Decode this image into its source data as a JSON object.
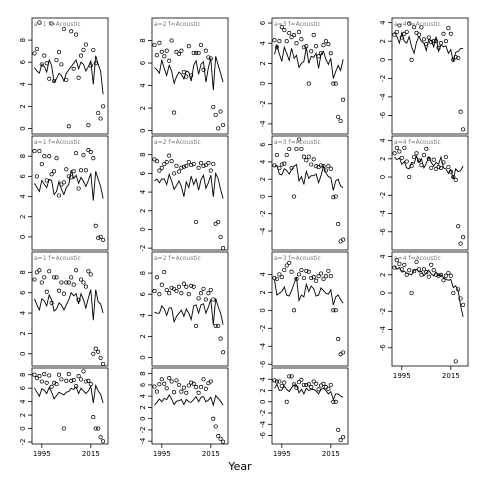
{
  "chart_data": {
    "type": "line",
    "xlabel": "Year",
    "ylabel": "",
    "xlim": [
      1991,
      2022
    ],
    "x_ticks": [
      1995,
      2015
    ],
    "x_tick_labels": [
      "1995",
      "2015"
    ],
    "grid": false,
    "legend": "none",
    "x": [
      1992,
      1993,
      1994,
      1995,
      1996,
      1997,
      1998,
      1999,
      2000,
      2001,
      2002,
      2003,
      2004,
      2005,
      2006,
      2007,
      2008,
      2009,
      2010,
      2011,
      2012,
      2013,
      2014,
      2015,
      2016,
      2017,
      2018,
      2019,
      2020
    ],
    "panels": [
      {
        "col": 0,
        "row": 0,
        "label": "a=1 f=Acoustic",
        "ylim": [
          -0.5,
          10
        ],
        "yticks": [
          0,
          2,
          4,
          6,
          8
        ],
        "line": [
          5.5,
          5.2,
          5.0,
          5.8,
          5.6,
          5.1,
          6.2,
          5.7,
          4.2,
          4.5,
          5.0,
          4.8,
          4.3,
          5.0,
          5.3,
          5.6,
          5.9,
          6.2,
          5.4,
          6.0,
          5.8,
          5.2,
          5.6,
          6.1,
          4.0,
          6.6,
          5.8,
          5.2,
          3.1
        ],
        "points": [
          6.8,
          7.2,
          9.6,
          5.8,
          6.6,
          5.9,
          4.5,
          9.5,
          4.3,
          6.2,
          6.9,
          5.8,
          9.0,
          4.4,
          0.2,
          8.8,
          5.4,
          8.5,
          4.6,
          6.6,
          7.1,
          7.6,
          0.3,
          5.7,
          7.1,
          5.9,
          1.4,
          0.9,
          2.0
        ]
      },
      {
        "col": 1,
        "row": 0,
        "label": "a=2 f=Acoustic",
        "ylim": [
          -0.3,
          10
        ],
        "yticks": [
          0,
          2,
          4,
          6,
          8
        ],
        "line": [
          5.6,
          5.4,
          5.1,
          6.3,
          5.5,
          4.9,
          5.8,
          5.3,
          4.2,
          4.8,
          5.2,
          5.0,
          4.6,
          5.3,
          5.2,
          4.4,
          5.8,
          6.2,
          5.0,
          5.9,
          6.1,
          4.3,
          5.6,
          6.4,
          3.6,
          6.6,
          5.8,
          5.1,
          4.3
        ],
        "points": [
          7.6,
          6.7,
          7.8,
          7.0,
          6.6,
          7.1,
          6.2,
          8.0,
          1.6,
          7.0,
          6.8,
          7.1,
          5.2,
          4.8,
          7.5,
          4.9,
          6.9,
          6.9,
          6.9,
          7.6,
          5.4,
          7.1,
          6.5,
          6.4,
          2.1,
          1.4,
          0.2,
          1.7,
          0.5
        ]
      },
      {
        "col": 2,
        "row": 0,
        "label": "a=3 f=Acoustic",
        "ylim": [
          -5,
          6.5
        ],
        "yticks": [
          -4,
          -2,
          0,
          2,
          4,
          6
        ],
        "line": [
          2.9,
          3.8,
          2.9,
          2.2,
          3.6,
          3.0,
          2.3,
          3.5,
          2.5,
          2.8,
          1.6,
          2.0,
          2.2,
          3.6,
          2.0,
          2.7,
          2.6,
          3.0,
          1.5,
          2.9,
          3.2,
          2.4,
          1.9,
          2.5,
          0.5,
          1.2,
          1.8,
          1.3,
          2.4
        ],
        "points": [
          4.3,
          3.6,
          4.2,
          5.6,
          5.3,
          4.2,
          5.0,
          4.6,
          4.8,
          4.0,
          5.1,
          4.4,
          3.6,
          3.7,
          0.0,
          3.2,
          4.8,
          3.7,
          2.7,
          3.0,
          3.8,
          4.2,
          3.9,
          3.0,
          0.0,
          0.0,
          -3.3,
          -3.7,
          -1.6
        ]
      },
      {
        "col": 3,
        "row": 0,
        "label": "a=4 f=Acoustic",
        "ylim": [
          -8,
          4.5
        ],
        "yticks": [
          -6,
          -4,
          -2,
          0,
          2,
          4
        ],
        "line": [
          3.0,
          2.5,
          1.8,
          2.9,
          2.0,
          1.8,
          2.5,
          1.4,
          0.7,
          1.9,
          2.5,
          2.0,
          1.8,
          1.0,
          2.2,
          2.1,
          1.4,
          2.5,
          0.9,
          1.6,
          1.4,
          1.5,
          0.7,
          1.1,
          -0.2,
          0.8,
          0.9,
          1.2,
          1.2
        ],
        "points": [
          2.7,
          3.0,
          3.7,
          2.4,
          2.8,
          3.0,
          3.9,
          0.0,
          3.5,
          2.9,
          2.7,
          3.5,
          2.2,
          1.7,
          2.4,
          1.9,
          2.0,
          2.0,
          1.3,
          1.8,
          2.8,
          2.0,
          3.4,
          2.8,
          0.0,
          0.3,
          0.2,
          -5.6,
          -7.5
        ]
      },
      {
        "col": 0,
        "row": 1,
        "label": "a=1 f=Acoustic",
        "ylim": [
          -1.3,
          10
        ],
        "yticks": [
          0,
          2,
          4,
          6,
          8
        ],
        "line": [
          5.3,
          4.9,
          4.5,
          5.6,
          5.2,
          4.9,
          5.7,
          5.6,
          4.2,
          4.5,
          5.5,
          4.7,
          4.2,
          4.9,
          5.2,
          6.6,
          5.8,
          6.1,
          5.3,
          5.9,
          5.5,
          5.0,
          5.6,
          6.3,
          3.6,
          6.5,
          5.7,
          5.0,
          3.8
        ],
        "points": [
          8.5,
          6.0,
          8.5,
          7.2,
          8.0,
          5.6,
          8.0,
          6.2,
          6.5,
          7.8,
          4.1,
          5.2,
          5.4,
          6.7,
          6.0,
          5.9,
          6.5,
          8.3,
          4.8,
          6.6,
          8.1,
          6.6,
          8.6,
          8.4,
          7.8,
          1.1,
          -0.1,
          0.0,
          -0.3
        ]
      },
      {
        "col": 1,
        "row": 1,
        "label": "a=2 f=Acoustic",
        "ylim": [
          -2.2,
          10
        ],
        "yticks": [
          -2,
          0,
          2,
          4,
          6,
          8
        ],
        "line": [
          5.2,
          5.4,
          5.0,
          5.4,
          5.4,
          4.8,
          5.9,
          5.2,
          4.3,
          4.7,
          5.2,
          4.6,
          3.5,
          5.1,
          4.5,
          5.7,
          4.8,
          5.4,
          4.2,
          5.3,
          5.8,
          4.4,
          5.0,
          5.8,
          3.5,
          6.0,
          5.4,
          4.3,
          3.3
        ],
        "points": [
          7.5,
          7.3,
          6.3,
          6.6,
          7.0,
          7.2,
          7.9,
          7.3,
          6.0,
          6.8,
          6.2,
          6.6,
          6.7,
          6.8,
          7.2,
          6.9,
          7.0,
          0.8,
          6.6,
          7.1,
          6.8,
          6.9,
          7.1,
          6.3,
          7.0,
          0.6,
          0.8,
          -0.8,
          -2.0
        ]
      },
      {
        "col": 2,
        "row": 1,
        "label": "a=3 f=Acoustic",
        "ylim": [
          -6.2,
          7
        ],
        "yticks": [
          -4,
          -2,
          0,
          2,
          4,
          6
        ],
        "line": [
          3.5,
          3.6,
          2.6,
          2.5,
          3.2,
          3.0,
          2.6,
          3.1,
          3.5,
          3.7,
          1.8,
          2.3,
          1.4,
          2.9,
          2.1,
          2.4,
          2.4,
          2.6,
          1.6,
          2.4,
          3.5,
          2.7,
          2.3,
          2.2,
          0.7,
          1.8,
          2.0,
          1.2,
          1.0
        ],
        "points": [
          3.6,
          4.8,
          3.3,
          3.7,
          3.8,
          4.8,
          5.5,
          3.3,
          0.0,
          5.5,
          6.6,
          5.5,
          4.6,
          4.2,
          4.6,
          3.7,
          4.3,
          3.5,
          3.4,
          3.6,
          3.5,
          3.0,
          3.5,
          3.2,
          -0.1,
          0.0,
          -3.2,
          -5.2,
          -5.0
        ]
      },
      {
        "col": 3,
        "row": 1,
        "label": "a=4 f=Acoustic",
        "ylim": [
          -8,
          4.5
        ],
        "yticks": [
          -6,
          -4,
          -2,
          0,
          2,
          4
        ],
        "line": [
          2.2,
          1.9,
          2.1,
          1.4,
          1.7,
          1.0,
          0.9,
          1.6,
          1.5,
          2.3,
          1.6,
          2.0,
          1.0,
          1.5,
          2.2,
          1.6,
          1.2,
          1.6,
          1.4,
          2.2,
          1.0,
          0.9,
          0.4,
          0.8,
          -0.2,
          0.9,
          0.6,
          0.7,
          1.2
        ],
        "points": [
          2.6,
          3.2,
          2.8,
          2.1,
          3.2,
          1.7,
          0.0,
          1.2,
          2.2,
          2.6,
          1.8,
          1.3,
          2.4,
          3.1,
          2.0,
          1.0,
          1.9,
          0.9,
          1.1,
          1.0,
          1.6,
          2.2,
          1.1,
          0.6,
          0.0,
          -0.3,
          -5.4,
          -7.3,
          -6.6
        ]
      },
      {
        "col": 0,
        "row": 2,
        "label": "a=1 f=Acoustic",
        "ylim": [
          -1.2,
          10
        ],
        "yticks": [
          0,
          2,
          4,
          6,
          8
        ],
        "line": [
          5.4,
          4.8,
          4.3,
          5.4,
          5.2,
          4.7,
          5.8,
          5.3,
          4.2,
          4.4,
          5.0,
          4.8,
          4.3,
          4.8,
          5.3,
          6.0,
          5.7,
          5.9,
          4.9,
          5.9,
          5.3,
          4.5,
          5.5,
          6.3,
          3.3,
          6.3,
          5.1,
          4.9,
          4.0
        ],
        "points": [
          7.3,
          8.0,
          8.2,
          7.0,
          7.5,
          6.1,
          8.1,
          5.0,
          7.5,
          7.5,
          6.2,
          7.0,
          5.9,
          7.0,
          7.0,
          7.5,
          6.8,
          8.2,
          5.3,
          7.3,
          7.0,
          6.6,
          8.1,
          7.8,
          0.0,
          0.5,
          0.2,
          -0.4,
          -1.0
        ]
      },
      {
        "col": 1,
        "row": 2,
        "label": "a=2 f=Acoustic",
        "ylim": [
          -0.8,
          10
        ],
        "yticks": [
          0,
          2,
          4,
          6,
          8
        ],
        "line": [
          4.3,
          4.2,
          4.2,
          4.9,
          4.6,
          4.0,
          4.7,
          4.7,
          3.4,
          3.9,
          4.2,
          4.5,
          3.9,
          4.6,
          4.2,
          3.6,
          4.9,
          5.0,
          4.2,
          5.0,
          5.1,
          4.2,
          4.8,
          5.5,
          3.1,
          5.6,
          4.8,
          4.2,
          3.1
        ],
        "points": [
          6.3,
          7.6,
          6.0,
          6.9,
          8.1,
          6.4,
          6.1,
          6.6,
          6.5,
          6.3,
          6.7,
          6.1,
          7.0,
          6.7,
          6.0,
          6.8,
          6.7,
          3.0,
          5.6,
          6.1,
          6.5,
          5.5,
          6.1,
          6.4,
          5.5,
          3.0,
          3.0,
          1.8,
          0.5
        ]
      },
      {
        "col": 2,
        "row": 2,
        "label": "a=3 f=Acoustic",
        "ylim": [
          -6.2,
          6.5
        ],
        "yticks": [
          -6,
          -4,
          -2,
          0,
          2,
          4
        ],
        "line": [
          3.4,
          1.7,
          1.9,
          2.1,
          2.6,
          1.7,
          1.6,
          2.2,
          3.0,
          3.7,
          1.1,
          1.7,
          1.5,
          2.9,
          2.1,
          2.7,
          2.4,
          1.6,
          1.7,
          2.5,
          2.2,
          1.9,
          1.8,
          2.3,
          0.6,
          1.5,
          1.7,
          1.2,
          0.8
        ],
        "points": [
          3.6,
          3.5,
          4.0,
          3.7,
          4.5,
          5.0,
          5.3,
          4.3,
          0.0,
          3.5,
          4.0,
          4.5,
          3.6,
          4.4,
          4.3,
          3.6,
          3.7,
          3.3,
          3.8,
          4.1,
          3.5,
          3.8,
          4.4,
          3.8,
          0.0,
          0.0,
          -3.2,
          -4.9,
          -4.7
        ]
      },
      {
        "col": 3,
        "row": 2,
        "label": "a=4 f=Acoustic",
        "ylim": [
          -8,
          4.5
        ],
        "yticks": [
          -6,
          -4,
          -2,
          0,
          2,
          4
        ],
        "line": [
          3.0,
          2.6,
          2.8,
          2.3,
          2.4,
          2.2,
          2.1,
          2.0,
          2.5,
          2.6,
          2.3,
          2.4,
          1.9,
          2.2,
          2.5,
          2.1,
          1.9,
          2.3,
          1.9,
          2.0,
          1.7,
          1.5,
          1.4,
          1.5,
          0.6,
          0.8,
          0.2,
          -1.4,
          -2.6
        ],
        "points": [
          2.8,
          3.6,
          3.2,
          2.6,
          3.1,
          2.0,
          2.5,
          0.0,
          2.4,
          3.4,
          2.6,
          2.0,
          2.6,
          2.3,
          1.8,
          3.1,
          2.5,
          2.0,
          1.9,
          2.0,
          1.4,
          1.9,
          2.2,
          1.9,
          0.0,
          -7.5,
          0.4,
          -0.6,
          -1.3
        ]
      },
      {
        "col": 0,
        "row": 3,
        "label": "",
        "ylim": [
          -2.3,
          9
        ],
        "yticks": [
          -2,
          0,
          2,
          4,
          6,
          8
        ],
        "line": [
          6.0,
          5.4,
          4.8,
          5.9,
          5.7,
          5.2,
          6.1,
          5.4,
          4.4,
          4.9,
          5.4,
          5.2,
          5.0,
          5.4,
          5.5,
          6.0,
          5.8,
          6.2,
          5.2,
          6.0,
          5.6,
          5.2,
          5.6,
          6.3,
          3.8,
          6.4,
          5.6,
          5.1,
          3.8
        ],
        "points": [
          8.0,
          7.5,
          7.8,
          7.0,
          8.1,
          6.8,
          7.9,
          6.2,
          6.8,
          6.6,
          8.0,
          7.3,
          0.0,
          7.1,
          8.1,
          7.1,
          7.2,
          6.3,
          7.8,
          7.3,
          8.5,
          7.0,
          7.1,
          6.6,
          1.7,
          0.0,
          0.0,
          -1.3,
          -1.9
        ]
      },
      {
        "col": 1,
        "row": 3,
        "label": "",
        "ylim": [
          -4.5,
          9
        ],
        "yticks": [
          -4,
          -2,
          0,
          2,
          4,
          6,
          8
        ],
        "line": [
          2.4,
          2.9,
          3.5,
          3.0,
          3.6,
          3.4,
          4.2,
          3.5,
          2.5,
          3.1,
          3.2,
          3.4,
          2.5,
          3.4,
          3.0,
          2.9,
          3.4,
          3.9,
          3.0,
          3.8,
          3.9,
          3.0,
          3.3,
          3.8,
          2.4,
          4.1,
          3.6,
          3.1,
          2.4
        ],
        "points": [
          5.7,
          4.8,
          6.1,
          7.0,
          6.2,
          5.4,
          7.2,
          6.6,
          4.7,
          6.8,
          6.0,
          4.8,
          5.5,
          4.6,
          5.9,
          6.4,
          6.2,
          5.6,
          4.6,
          5.6,
          7.0,
          5.3,
          6.3,
          6.6,
          0.0,
          -1.4,
          -3.1,
          -3.6,
          -4.1
        ]
      },
      {
        "col": 2,
        "row": 3,
        "label": "",
        "ylim": [
          -7.5,
          6
        ],
        "yticks": [
          -6,
          -4,
          -2,
          0,
          2,
          4
        ],
        "line": [
          2.4,
          3.1,
          2.0,
          2.1,
          2.8,
          2.2,
          1.8,
          2.5,
          3.0,
          3.0,
          1.6,
          2.2,
          1.4,
          2.4,
          2.0,
          2.2,
          2.2,
          1.9,
          1.4,
          2.2,
          2.4,
          2.0,
          1.4,
          1.8,
          0.4,
          1.4,
          1.4,
          1.0,
          0.8
        ],
        "points": [
          3.8,
          3.6,
          3.6,
          2.8,
          3.4,
          0.0,
          4.5,
          4.5,
          3.1,
          2.5,
          3.5,
          3.9,
          3.0,
          3.0,
          3.1,
          2.6,
          3.6,
          3.2,
          2.2,
          2.9,
          3.2,
          2.6,
          2.3,
          3.0,
          0.0,
          0.0,
          -5.0,
          -6.8,
          -6.3
        ]
      }
    ]
  }
}
